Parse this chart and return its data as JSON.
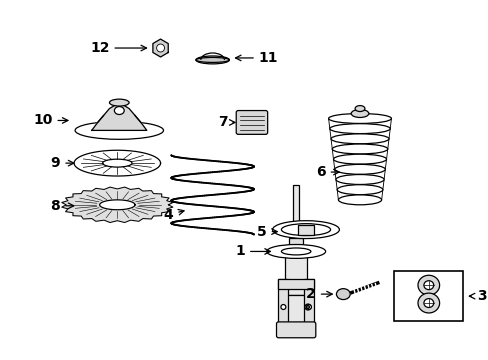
{
  "bg_color": "#ffffff",
  "line_color": "#000000",
  "fig_width": 4.89,
  "fig_height": 3.6,
  "dpi": 100,
  "lw": 0.9
}
